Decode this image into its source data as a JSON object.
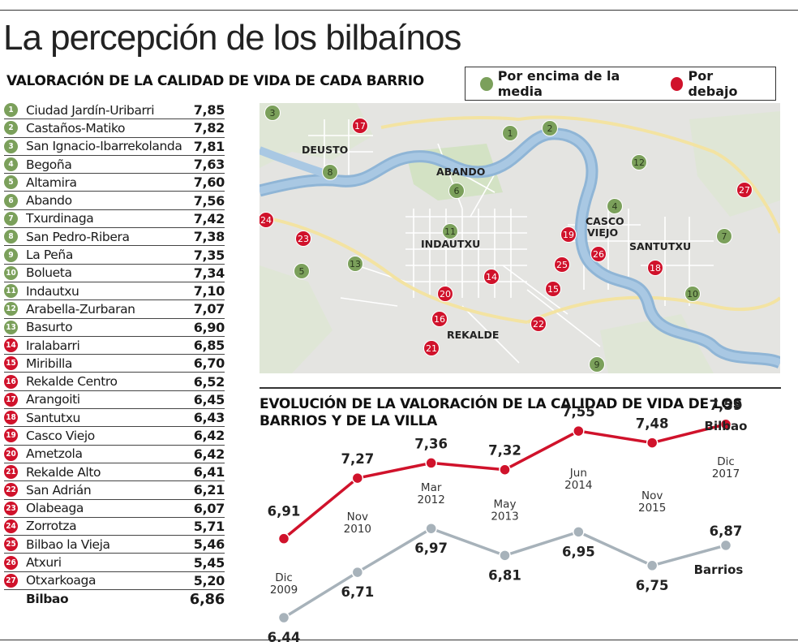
{
  "title": "La percepción de los bilbaínos",
  "subtitle": "VALORACIÓN DE LA CALIDAD DE VIDA DE CADA BARRIO",
  "legend": {
    "above": "Por encima de la media",
    "below": "Por debajo",
    "above_color": "#7ba05b",
    "below_color": "#d0122b"
  },
  "ranking": [
    {
      "n": "1",
      "name": "Ciudad Jardín-Uribarri",
      "score": "7,85",
      "group": "above"
    },
    {
      "n": "2",
      "name": "Castaños-Matiko",
      "score": "7,82",
      "group": "above"
    },
    {
      "n": "3",
      "name": "San Ignacio-Ibarrekolanda",
      "score": "7,81",
      "group": "above"
    },
    {
      "n": "4",
      "name": "Begoña",
      "score": "7,63",
      "group": "above"
    },
    {
      "n": "5",
      "name": "Altamira",
      "score": "7,60",
      "group": "above"
    },
    {
      "n": "6",
      "name": "Abando",
      "score": "7,56",
      "group": "above"
    },
    {
      "n": "7",
      "name": "Txurdinaga",
      "score": "7,42",
      "group": "above"
    },
    {
      "n": "8",
      "name": "San Pedro-Ribera",
      "score": "7,38",
      "group": "above"
    },
    {
      "n": "9",
      "name": "La Peña",
      "score": "7,35",
      "group": "above"
    },
    {
      "n": "10",
      "name": "Bolueta",
      "score": "7,34",
      "group": "above"
    },
    {
      "n": "11",
      "name": "Indautxu",
      "score": "7,10",
      "group": "above"
    },
    {
      "n": "12",
      "name": "Arabella-Zurbaran",
      "score": "7,07",
      "group": "above"
    },
    {
      "n": "13",
      "name": "Basurto",
      "score": "6,90",
      "group": "above"
    },
    {
      "n": "14",
      "name": "Iralabarri",
      "score": "6,85",
      "group": "below"
    },
    {
      "n": "15",
      "name": "Miribilla",
      "score": "6,70",
      "group": "below"
    },
    {
      "n": "16",
      "name": "Rekalde Centro",
      "score": "6,52",
      "group": "below"
    },
    {
      "n": "17",
      "name": "Arangoiti",
      "score": "6,45",
      "group": "below"
    },
    {
      "n": "18",
      "name": "Santutxu",
      "score": "6,43",
      "group": "below"
    },
    {
      "n": "19",
      "name": "Casco Viejo",
      "score": "6,42",
      "group": "below"
    },
    {
      "n": "20",
      "name": "Ametzola",
      "score": "6,42",
      "group": "below"
    },
    {
      "n": "21",
      "name": "Rekalde Alto",
      "score": "6,41",
      "group": "below"
    },
    {
      "n": "22",
      "name": "San Adrián",
      "score": "6,21",
      "group": "below"
    },
    {
      "n": "23",
      "name": "Olabeaga",
      "score": "6,07",
      "group": "below"
    },
    {
      "n": "24",
      "name": "Zorrotza",
      "score": "5,71",
      "group": "below"
    },
    {
      "n": "25",
      "name": "Bilbao la Vieja",
      "score": "5,46",
      "group": "below"
    },
    {
      "n": "26",
      "name": "Atxuri",
      "score": "5,45",
      "group": "below"
    },
    {
      "n": "27",
      "name": "Otxarkoaga",
      "score": "5,20",
      "group": "below"
    }
  ],
  "total": {
    "name": "Bilbao",
    "score": "6,86"
  },
  "map": {
    "district_labels": [
      "DEUSTO",
      "ABANDO",
      "INDAUTXU",
      "CASCO VIEJO",
      "SANTUTXU",
      "REKALDE"
    ],
    "markers": [
      {
        "n": "1",
        "group": "above"
      },
      {
        "n": "2",
        "group": "above"
      },
      {
        "n": "3",
        "group": "above"
      },
      {
        "n": "4",
        "group": "above"
      },
      {
        "n": "5",
        "group": "above"
      },
      {
        "n": "6",
        "group": "above"
      },
      {
        "n": "7",
        "group": "above"
      },
      {
        "n": "8",
        "group": "above"
      },
      {
        "n": "9",
        "group": "above"
      },
      {
        "n": "10",
        "group": "above"
      },
      {
        "n": "11",
        "group": "above"
      },
      {
        "n": "12",
        "group": "above"
      },
      {
        "n": "13",
        "group": "above"
      },
      {
        "n": "14",
        "group": "below"
      },
      {
        "n": "15",
        "group": "below"
      },
      {
        "n": "16",
        "group": "below"
      },
      {
        "n": "17",
        "group": "below"
      },
      {
        "n": "18",
        "group": "below"
      },
      {
        "n": "19",
        "group": "below"
      },
      {
        "n": "20",
        "group": "below"
      },
      {
        "n": "21",
        "group": "below"
      },
      {
        "n": "22",
        "group": "below"
      },
      {
        "n": "23",
        "group": "below"
      },
      {
        "n": "24",
        "group": "below"
      },
      {
        "n": "25",
        "group": "below"
      },
      {
        "n": "26",
        "group": "below"
      },
      {
        "n": "27",
        "group": "below"
      }
    ]
  },
  "chart_data": {
    "type": "line",
    "title": "EVOLUCIÓN DE LA VALORACIÓN DE LA CALIDAD DE VIDA DE LOS BARRIOS Y DE LA VILLA",
    "categories": [
      "Dic 2009",
      "Nov 2010",
      "Mar 2012",
      "May 2013",
      "Jun 2014",
      "Nov 2015",
      "Dic 2017"
    ],
    "series": [
      {
        "name": "Bilbao",
        "color": "#d0122b",
        "values": [
          6.91,
          7.27,
          7.36,
          7.32,
          7.55,
          7.48,
          7.59
        ],
        "labels": [
          "6,91",
          "7,27",
          "7,36",
          "7,32",
          "7,55",
          "7,48",
          "7,59"
        ]
      },
      {
        "name": "Barrios",
        "color": "#a7b2ba",
        "values": [
          6.44,
          6.71,
          6.97,
          6.81,
          6.95,
          6.75,
          6.87
        ],
        "labels": [
          "6,44",
          "6,71",
          "6,97",
          "6,81",
          "6,95",
          "6,75",
          "6,87"
        ]
      }
    ],
    "xlabel": "",
    "ylabel": "",
    "ylim": [
      6.3,
      7.7
    ],
    "grid": false
  }
}
